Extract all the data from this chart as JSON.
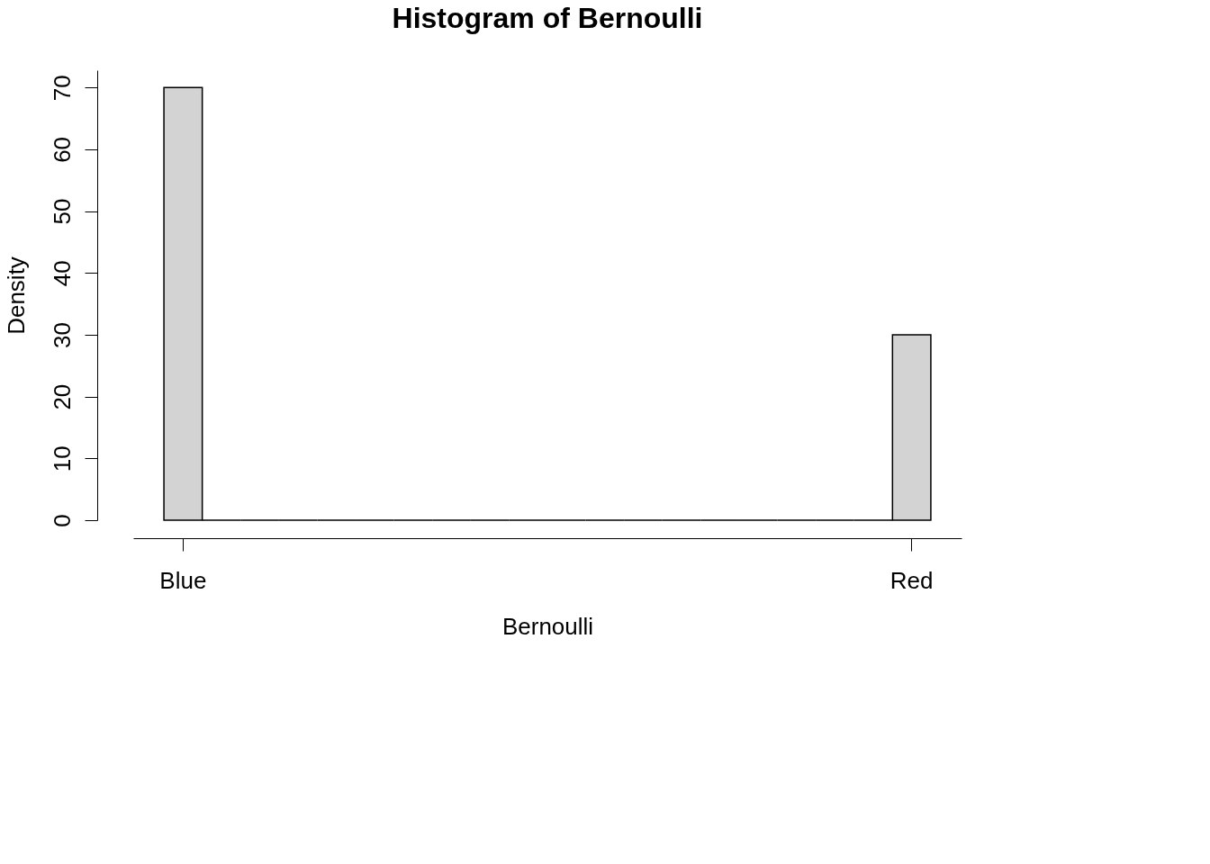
{
  "chart_data": {
    "type": "bar",
    "title": "Histogram of Bernoulli",
    "xlabel": "Bernoulli",
    "ylabel": "Density",
    "categories": [
      "Blue",
      null,
      null,
      null,
      null,
      null,
      null,
      null,
      null,
      null,
      null,
      null,
      null,
      null,
      null,
      null,
      null,
      null,
      null,
      "Red"
    ],
    "values": [
      70,
      0,
      0,
      0,
      0,
      0,
      0,
      0,
      0,
      0,
      0,
      0,
      0,
      0,
      0,
      0,
      0,
      0,
      0,
      30
    ],
    "colors": [
      "#d3d3d3",
      "#000000",
      "#000000",
      "#000000",
      "#000000",
      "#000000",
      "#000000",
      "#000000",
      "#000000",
      "#000000",
      "#000000",
      "#000000",
      "#000000",
      "#000000",
      "#000000",
      "#000000",
      "#000000",
      "#000000",
      "#000000",
      "#d3d3d3"
    ],
    "ylim": [
      0,
      72.8
    ],
    "yticks": [
      0,
      10,
      20,
      30,
      40,
      50,
      60,
      70
    ],
    "grid": false
  }
}
